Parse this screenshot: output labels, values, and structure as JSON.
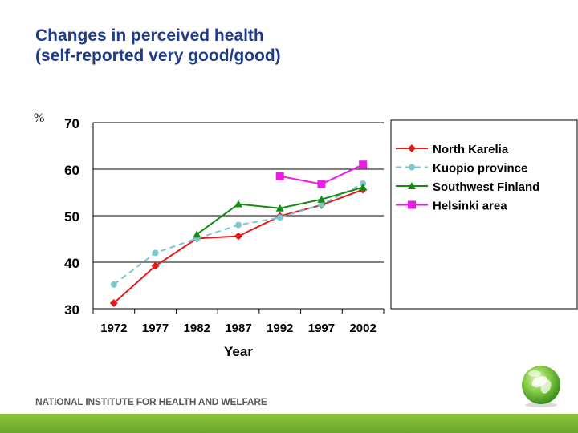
{
  "title": {
    "line1": "Changes in perceived health",
    "line2": "(self-reported very good/good)"
  },
  "footer": {
    "institution": "NATIONAL INSTITUTE FOR HEALTH AND WELFARE"
  },
  "colors": {
    "title": "#1f3c8c",
    "footer_bar": "#7cb832"
  },
  "logo": {
    "icon": "green-globe-leaf-icon"
  },
  "chart_data": {
    "type": "line",
    "ylabel": "%",
    "xlabel": "Year",
    "ylim": [
      30,
      70
    ],
    "yticks": [
      30,
      40,
      50,
      60,
      70
    ],
    "categories": [
      "1972",
      "1977",
      "1982",
      "1987",
      "1992",
      "1997",
      "2002"
    ],
    "grid": "horizontal",
    "legend_position": "right",
    "series": [
      {
        "name": "North Karelia",
        "color": "#e01b1b",
        "marker": "diamond",
        "dash": "solid",
        "values": [
          31.2,
          39.2,
          45.1,
          45.6,
          49.9,
          52.3,
          55.6
        ]
      },
      {
        "name": "Kuopio province",
        "color": "#79c7cf",
        "marker": "circle",
        "dash": "dashed",
        "values": [
          35.2,
          42.0,
          45.1,
          48.0,
          49.6,
          52.4,
          56.9
        ]
      },
      {
        "name": "Southwest Finland",
        "color": "#138c13",
        "marker": "triangle",
        "dash": "solid",
        "values": [
          null,
          null,
          46.0,
          52.5,
          51.6,
          53.5,
          56.1
        ]
      },
      {
        "name": "Helsinki area",
        "color": "#ee1ae6",
        "marker": "square",
        "dash": "solid",
        "values": [
          null,
          null,
          null,
          null,
          58.5,
          56.8,
          61.0
        ]
      }
    ]
  }
}
